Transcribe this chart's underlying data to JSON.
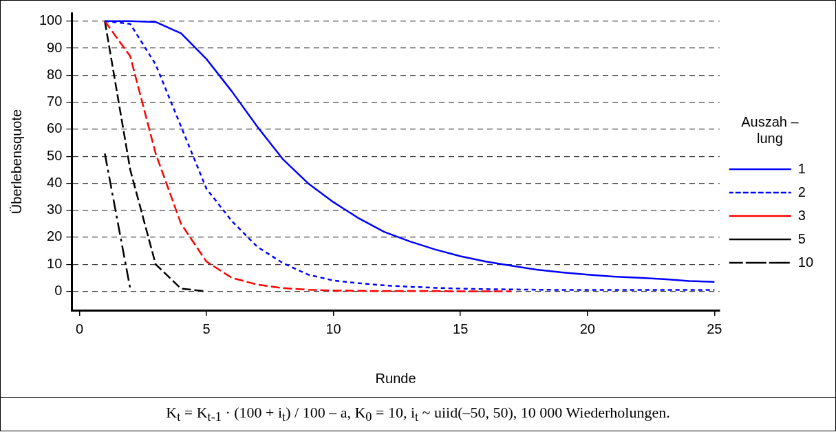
{
  "chart_data": {
    "type": "line",
    "xlabel": "Runde",
    "ylabel": "Überlebensquote",
    "legend_title": "Auszah – lung",
    "xlim": [
      -0.3,
      25.2
    ],
    "xticks": [
      0,
      5,
      10,
      15,
      20,
      25
    ],
    "ylim": [
      -7,
      103
    ],
    "yticks": [
      0,
      10,
      20,
      30,
      40,
      50,
      60,
      70,
      80,
      90,
      100
    ],
    "grid": "y",
    "legend": "right",
    "marker": "none",
    "series": [
      {
        "name": "1",
        "color": "#0000ff",
        "line_style": "solid",
        "x": [
          1,
          2,
          3,
          4,
          5,
          6,
          7,
          8,
          9,
          10,
          11,
          12,
          13,
          14,
          15,
          16,
          17,
          18,
          19,
          20,
          21,
          22,
          23,
          24,
          25
        ],
        "values": [
          100,
          100,
          99.7,
          95.5,
          86,
          74,
          61,
          49,
          40,
          33,
          27,
          22,
          18.5,
          15.5,
          13,
          11,
          9.5,
          8,
          7,
          6.2,
          5.5,
          5,
          4.5,
          3.8,
          3.5
        ]
      },
      {
        "name": "2",
        "color": "#0000ff",
        "line_style": "dotted",
        "x": [
          1,
          2,
          3,
          4,
          5,
          6,
          7,
          8,
          9,
          10,
          11,
          12,
          13,
          14,
          15,
          16,
          17,
          18,
          19,
          20,
          21,
          22,
          23,
          24,
          25
        ],
        "values": [
          100,
          99,
          84,
          61,
          38,
          26,
          16.5,
          10.5,
          6.2,
          4,
          3,
          2.2,
          1.7,
          1.3,
          1,
          0.8,
          0.7,
          0.6,
          0.5,
          0.5,
          0.5,
          0.5,
          0.5,
          0.5,
          0.5
        ]
      },
      {
        "name": "3",
        "color": "#ff0000",
        "line_style": "dashed",
        "x": [
          1,
          2,
          3,
          4,
          5,
          6,
          7,
          8,
          9,
          10,
          11,
          12,
          13,
          14,
          15,
          16,
          17
        ],
        "values": [
          100,
          87,
          51,
          25,
          11,
          5,
          2.5,
          1.2,
          0.6,
          0.3,
          0.2,
          0.1,
          0.1,
          0.1,
          0,
          0,
          0
        ]
      },
      {
        "name": "5",
        "color": "#000000",
        "line_style": "dashed",
        "x": [
          1,
          2,
          3,
          4,
          5
        ],
        "values": [
          100,
          45,
          10,
          1,
          0
        ]
      },
      {
        "name": "10",
        "color": "#000000",
        "line_style": "dashdot",
        "x": [
          1,
          2
        ],
        "values": [
          51,
          1
        ]
      }
    ],
    "annotations": [
      "K$_{t}$ = K$_{t-1}$ · (100 + i$_{t}$) / 100 – a, K$_{0}$ = 10, i$_{t}$ ~ uiid(–50, 50), 10 000 Wiederholungen."
    ]
  }
}
